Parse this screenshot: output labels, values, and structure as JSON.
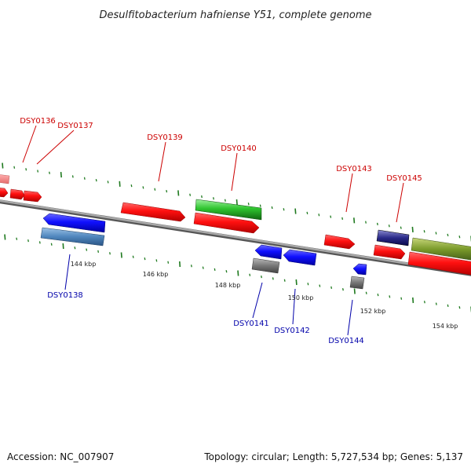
{
  "title": "Desulfitobacterium hafniense Y51, complete genome",
  "accession": "Accession: NC_007907",
  "summary": "Topology: circular; Length: 5,727,534 bp; Genes: 5,137",
  "colors": {
    "forward_label": "#cc0000",
    "reverse_label": "#0000aa",
    "tick": "#1f7a1f",
    "backbone": "#8c8c8c"
  },
  "scale_labels": [
    "144 kbp",
    "146 kbp",
    "148 kbp",
    "150 kbp",
    "152 kbp",
    "154 kbp"
  ],
  "gene_labels_top": [
    "DSY0136",
    "DSY0137",
    "DSY0139",
    "DSY0140",
    "DSY0143",
    "DSY0145"
  ],
  "gene_labels_bottom": [
    "DSY0138",
    "DSY0141",
    "DSY0142",
    "DSY0144"
  ]
}
